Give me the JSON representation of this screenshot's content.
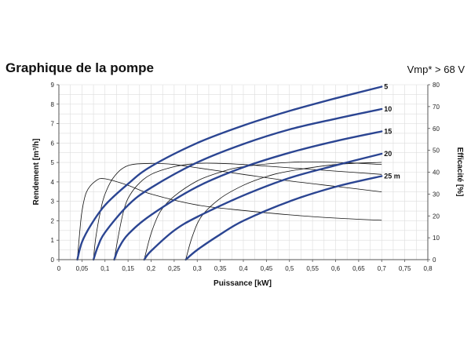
{
  "header": {
    "title": "Graphique de la pompe",
    "subtitle": "Vmp* > 68 V"
  },
  "chart_data": {
    "type": "line",
    "xlabel": "Puissance [kW]",
    "ylabel": "Rendement [m³/h]",
    "y2label": "Efficacité [%]",
    "xlim": [
      0,
      0.8
    ],
    "ylim": [
      0,
      9
    ],
    "y2lim": [
      0,
      80
    ],
    "x_ticks": [
      "0",
      "0,05",
      "0,1",
      "0,15",
      "0,2",
      "0,25",
      "0,3",
      "0,35",
      "0,4",
      "0,45",
      "0,5",
      "0,55",
      "0,6",
      "0,65",
      "0,7",
      "0,75",
      "0,8"
    ],
    "y_ticks": [
      "0",
      "1",
      "2",
      "3",
      "4",
      "5",
      "6",
      "7",
      "8",
      "9"
    ],
    "y2_ticks": [
      "0",
      "10",
      "20",
      "30",
      "40",
      "50",
      "60",
      "70",
      "80"
    ],
    "grid": true,
    "flow_series": [
      {
        "name": "5",
        "x": [
          0.04,
          0.05,
          0.07,
          0.1,
          0.15,
          0.2,
          0.3,
          0.4,
          0.5,
          0.6,
          0.7
        ],
        "y": [
          0,
          0.9,
          1.8,
          2.8,
          3.9,
          4.8,
          6.0,
          6.9,
          7.65,
          8.3,
          8.9
        ]
      },
      {
        "name": "10",
        "x": [
          0.075,
          0.085,
          0.1,
          0.15,
          0.2,
          0.3,
          0.4,
          0.5,
          0.6,
          0.7
        ],
        "y": [
          0,
          0.7,
          1.4,
          2.8,
          3.7,
          5.0,
          5.95,
          6.7,
          7.25,
          7.75
        ]
      },
      {
        "name": "15",
        "x": [
          0.12,
          0.13,
          0.15,
          0.2,
          0.3,
          0.4,
          0.5,
          0.6,
          0.7
        ],
        "y": [
          0,
          0.6,
          1.3,
          2.3,
          3.75,
          4.75,
          5.5,
          6.1,
          6.6
        ]
      },
      {
        "name": "20",
        "x": [
          0.185,
          0.2,
          0.25,
          0.3,
          0.4,
          0.5,
          0.6,
          0.7
        ],
        "y": [
          0,
          0.45,
          1.5,
          2.2,
          3.3,
          4.2,
          4.85,
          5.45
        ]
      },
      {
        "name": "25 m",
        "x": [
          0.275,
          0.3,
          0.35,
          0.4,
          0.5,
          0.6,
          0.7
        ],
        "y": [
          0,
          0.5,
          1.3,
          2.0,
          3.0,
          3.75,
          4.3
        ]
      }
    ],
    "efficiency_series": [
      {
        "x": [
          0.04,
          0.045,
          0.05,
          0.06,
          0.08,
          0.1,
          0.15,
          0.2,
          0.3,
          0.4,
          0.5,
          0.6,
          0.7
        ],
        "y": [
          0,
          12,
          22,
          31,
          36,
          37,
          34,
          30,
          25,
          22.5,
          20.5,
          19,
          18
        ]
      },
      {
        "x": [
          0.075,
          0.08,
          0.09,
          0.1,
          0.12,
          0.15,
          0.2,
          0.25,
          0.3,
          0.4,
          0.5,
          0.6,
          0.7
        ],
        "y": [
          0,
          10,
          22,
          30,
          38,
          43,
          44,
          43.5,
          42,
          39,
          36,
          33.5,
          31
        ]
      },
      {
        "x": [
          0.12,
          0.13,
          0.14,
          0.15,
          0.17,
          0.2,
          0.25,
          0.3,
          0.35,
          0.4,
          0.5,
          0.6,
          0.7
        ],
        "y": [
          0,
          12,
          22,
          28,
          34,
          39,
          42.5,
          44,
          44,
          43.5,
          42,
          40.5,
          39
        ]
      },
      {
        "x": [
          0.185,
          0.2,
          0.22,
          0.25,
          0.3,
          0.35,
          0.4,
          0.5,
          0.6,
          0.7
        ],
        "y": [
          0,
          12,
          22,
          29,
          36,
          40,
          42.5,
          44.5,
          44.5,
          43.5
        ]
      },
      {
        "x": [
          0.275,
          0.29,
          0.31,
          0.35,
          0.4,
          0.45,
          0.5,
          0.6,
          0.7
        ],
        "y": [
          0,
          11,
          20,
          28,
          34,
          38,
          40.5,
          43.5,
          44.5
        ]
      }
    ],
    "colors": {
      "flow": "#2b4592",
      "efficiency": "#111111",
      "grid": "#dddddd",
      "axis": "#555555"
    }
  }
}
